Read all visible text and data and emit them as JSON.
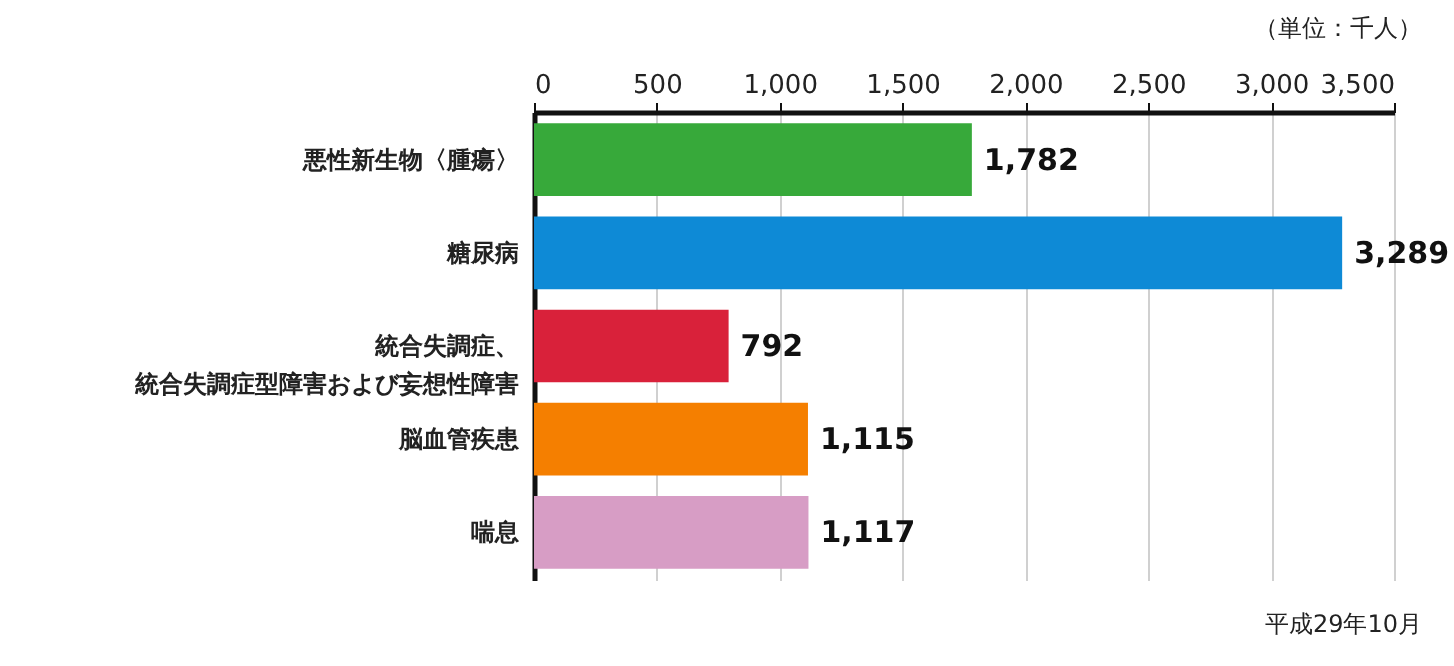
{
  "chart_data": {
    "type": "bar",
    "orientation": "horizontal",
    "categories": [
      "悪性新生物〈腫瘍〉",
      "糖尿病",
      "統合失調症、統合失調症型障害および妄想性障害",
      "脳血管疾患",
      "喘息"
    ],
    "values": [
      1782,
      3289,
      792,
      1115,
      1117
    ],
    "value_labels": [
      "1,782",
      "3,289",
      "792",
      "1,115",
      "1,117"
    ],
    "colors": [
      "#37a93a",
      "#0e8ad6",
      "#d9213a",
      "#f57f00",
      "#d79dc5"
    ],
    "xlim": [
      0,
      3500
    ],
    "xticks": [
      0,
      500,
      {
        "value": 1000,
        "label": "1,000"
      },
      {
        "value": 1500,
        "label": "1,500"
      },
      {
        "value": 2000,
        "label": "2,000"
      },
      {
        "value": 2500,
        "label": "2,500"
      },
      {
        "value": 3000,
        "label": "3,000"
      },
      {
        "value": 3500,
        "label": "3,500"
      }
    ],
    "grid": "x",
    "annotations": [
      "（単位：千人）",
      "平成29年10月"
    ]
  }
}
